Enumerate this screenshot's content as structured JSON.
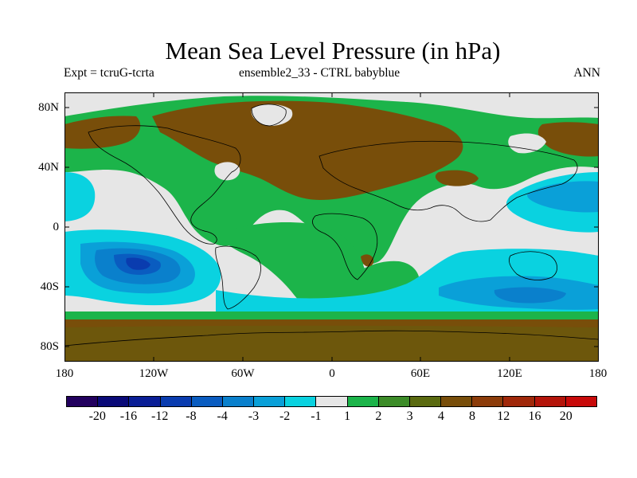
{
  "title": "Mean Sea Level Pressure (in hPa)",
  "subtitle_left": "Expt = tcruG-tcrta",
  "subtitle_center": "ensemble2_33 - CTRL babyblue",
  "subtitle_right": "ANN",
  "lat_labels": [
    "80N",
    "40N",
    "0",
    "40S",
    "80S"
  ],
  "lon_labels": [
    "180",
    "120W",
    "60W",
    "0",
    "60E",
    "120E",
    "180"
  ],
  "colorbar": {
    "colors": [
      "#22005e",
      "#0a0a78",
      "#0a1e96",
      "#0a3caf",
      "#0a5cc0",
      "#0a80cc",
      "#0aa0d8",
      "#0ad2e0",
      "#e6e6e6",
      "#1cb44a",
      "#3c8c28",
      "#5a6a10",
      "#784e0a",
      "#8c3c0a",
      "#a0280a",
      "#b4140a",
      "#c80a0a"
    ],
    "labels": [
      "-20",
      "-16",
      "-12",
      "-8",
      "-4",
      "-3",
      "-2",
      "-1",
      "1",
      "2",
      "3",
      "4",
      "8",
      "12",
      "16",
      "20"
    ]
  },
  "map_colors": {
    "background": "#e6e6e6",
    "cyan": "#0ad2e0",
    "light_blue": "#0aa0d8",
    "blue": "#0a80cc",
    "mid_blue": "#0a5cc0",
    "dark_blue": "#0a3caf",
    "green": "#1cb44a",
    "dark_green": "#3c8c28",
    "olive": "#5a6a10",
    "brown": "#784e0a",
    "coast": "#000000"
  }
}
